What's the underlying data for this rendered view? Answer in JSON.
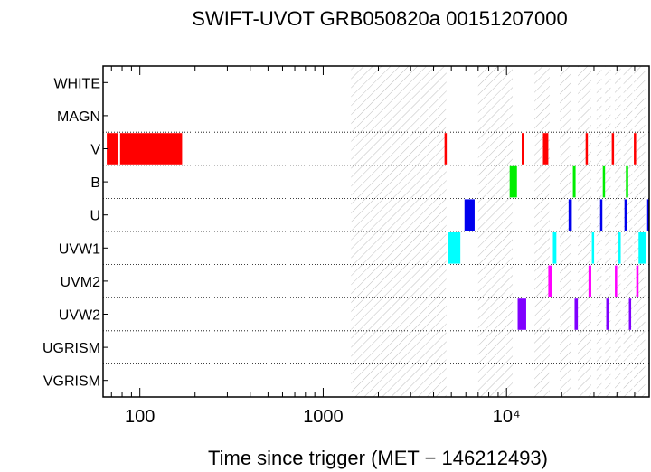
{
  "chart_data": {
    "type": "timeline",
    "title": "SWIFT-UVOT GRB050820a 00151207000",
    "xlabel": "Time since trigger (MET − 146212493)",
    "ylabel": "",
    "xscale": "log",
    "xlim": [
      63,
      60000
    ],
    "x_ticks": [
      {
        "value": 100,
        "label": "100"
      },
      {
        "value": 1000,
        "label": "1000"
      },
      {
        "value": 10000,
        "label": "10⁴"
      }
    ],
    "filters": [
      "WHITE",
      "MAGN",
      "V",
      "B",
      "U",
      "UVW1",
      "UVM2",
      "UVW2",
      "UGRISM",
      "VGRISM"
    ],
    "colors": {
      "V": "#ff0000",
      "B": "#00ee00",
      "U": "#0000ee",
      "UVW1": "#00ffff",
      "UVM2": "#ff00ff",
      "UVW2": "#8000ff"
    },
    "shaded_intervals": [
      [
        1420,
        4700
      ],
      [
        7000,
        10800
      ],
      [
        14200,
        17200
      ],
      [
        19500,
        22500
      ],
      [
        24500,
        29000
      ],
      [
        31000,
        33000
      ],
      [
        34500,
        37000
      ],
      [
        39000,
        42000
      ],
      [
        43500,
        48500
      ],
      [
        49500,
        57000
      ]
    ],
    "exposures": [
      {
        "filter": "V",
        "start": 66,
        "end": 76
      },
      {
        "filter": "V",
        "start": 78,
        "end": 170
      },
      {
        "filter": "V",
        "start": 4590,
        "end": 4700
      },
      {
        "filter": "V",
        "start": 12100,
        "end": 12400
      },
      {
        "filter": "V",
        "start": 15800,
        "end": 16900
      },
      {
        "filter": "V",
        "start": 27000,
        "end": 27700
      },
      {
        "filter": "V",
        "start": 37500,
        "end": 38300
      },
      {
        "filter": "V",
        "start": 49500,
        "end": 50500
      },
      {
        "filter": "B",
        "start": 10400,
        "end": 11400
      },
      {
        "filter": "B",
        "start": 23000,
        "end": 23800
      },
      {
        "filter": "B",
        "start": 33500,
        "end": 34400
      },
      {
        "filter": "B",
        "start": 44800,
        "end": 46000
      },
      {
        "filter": "U",
        "start": 5900,
        "end": 6700
      },
      {
        "filter": "U",
        "start": 21800,
        "end": 22700
      },
      {
        "filter": "U",
        "start": 32400,
        "end": 33300
      },
      {
        "filter": "U",
        "start": 44000,
        "end": 44700
      },
      {
        "filter": "U",
        "start": 58500,
        "end": 60000
      },
      {
        "filter": "UVW1",
        "start": 4780,
        "end": 5600
      },
      {
        "filter": "UVW1",
        "start": 17900,
        "end": 18700
      },
      {
        "filter": "UVW1",
        "start": 29200,
        "end": 30000
      },
      {
        "filter": "UVW1",
        "start": 40800,
        "end": 41700
      },
      {
        "filter": "UVW1",
        "start": 52500,
        "end": 57500
      },
      {
        "filter": "UVM2",
        "start": 16900,
        "end": 17800
      },
      {
        "filter": "UVM2",
        "start": 28000,
        "end": 29000
      },
      {
        "filter": "UVM2",
        "start": 39000,
        "end": 40000
      },
      {
        "filter": "UVM2",
        "start": 51000,
        "end": 52500
      },
      {
        "filter": "UVW2",
        "start": 11500,
        "end": 12800
      },
      {
        "filter": "UVW2",
        "start": 23500,
        "end": 24500
      },
      {
        "filter": "UVW2",
        "start": 35000,
        "end": 35800
      },
      {
        "filter": "UVW2",
        "start": 46500,
        "end": 47800
      }
    ]
  }
}
